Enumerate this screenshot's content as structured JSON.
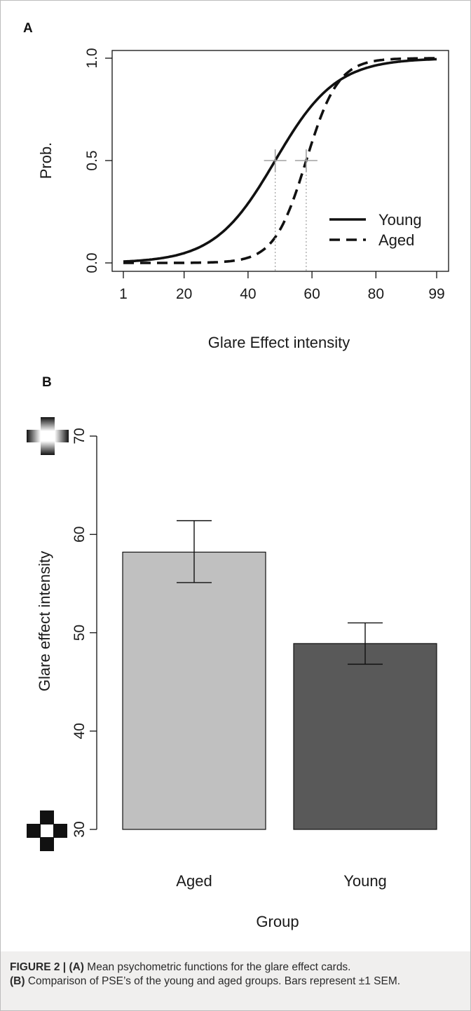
{
  "panel_a": {
    "letter": "A",
    "xlabel": "Glare Effect intensity",
    "ylabel": "Prob.",
    "x_ticks": [
      "1",
      "20",
      "40",
      "60",
      "80",
      "99"
    ],
    "y_ticks": [
      "0.0",
      "0.5",
      "1.0"
    ],
    "legend": [
      "Young",
      "Aged"
    ]
  },
  "panel_b": {
    "letter": "B",
    "xlabel": "Group",
    "ylabel": "Glare effect intensity",
    "y_ticks": [
      "30",
      "40",
      "50",
      "60",
      "70"
    ],
    "categories": [
      "Aged",
      "Young"
    ]
  },
  "caption": {
    "figure_label": "FIGURE 2 |",
    "part_a_label": "(A)",
    "part_a_text": " Mean psychometric functions for the glare effect cards.",
    "part_b_label": "(B)",
    "part_b_text": " Comparison of PSE’s of the young and aged groups. Bars represent ±1 SEM."
  },
  "chart_data": [
    {
      "type": "line",
      "xlabel": "Glare Effect intensity",
      "ylabel": "Prob.",
      "xlim": [
        1,
        99
      ],
      "ylim": [
        0,
        1
      ],
      "series": [
        {
          "name": "Young",
          "style": "solid",
          "pse": 48.5,
          "slope": 0.105,
          "x": [
            1,
            10,
            20,
            30,
            40,
            48.5,
            60,
            70,
            80,
            90,
            99
          ],
          "values": [
            0.007,
            0.017,
            0.047,
            0.122,
            0.29,
            0.5,
            0.77,
            0.9,
            0.97,
            0.99,
            1.0
          ]
        },
        {
          "name": "Aged",
          "style": "dashed",
          "pse": 58.2,
          "slope": 0.2,
          "x": [
            1,
            20,
            40,
            48.5,
            58.2,
            70,
            80,
            90,
            99
          ],
          "values": [
            0.0,
            0.0,
            0.025,
            0.13,
            0.5,
            0.91,
            0.98,
            1.0,
            1.0
          ]
        }
      ],
      "pse_markers": [
        {
          "series": "Young",
          "x": 48.5,
          "y": 0.5
        },
        {
          "series": "Aged",
          "x": 58.2,
          "y": 0.5
        }
      ],
      "legend_position": "bottom-right",
      "line_color": "#111111",
      "marker_color": "#a0a0a0"
    },
    {
      "type": "bar",
      "xlabel": "Group",
      "ylabel": "Glare effect intensity",
      "ylim": [
        30,
        70
      ],
      "categories": [
        "Aged",
        "Young"
      ],
      "values": [
        58.2,
        48.9
      ],
      "error_low": [
        55.1,
        46.8
      ],
      "error_high": [
        61.4,
        51.0
      ],
      "colors": [
        "#c0c0c0",
        "#595959"
      ]
    }
  ]
}
